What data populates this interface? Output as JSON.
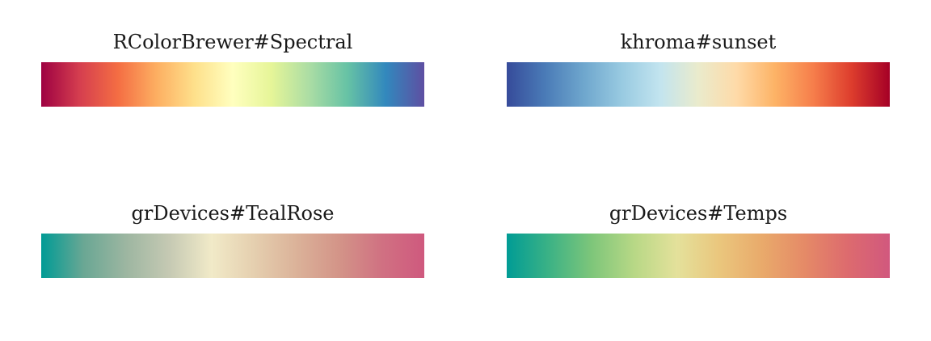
{
  "palettes": [
    {
      "title": "RColorBrewer#Spectral",
      "colors": [
        "#9e0142",
        "#d53e4f",
        "#f46d43",
        "#fdae61",
        "#fee08b",
        "#ffffbf",
        "#e6f598",
        "#abdda4",
        "#66c2a5",
        "#3288bd",
        "#5e4fa2"
      ]
    },
    {
      "title": "khroma#sunset",
      "colors": [
        "#364b9a",
        "#4a7bb7",
        "#6ea6cd",
        "#98cae1",
        "#c2e4ef",
        "#eaebcc",
        "#fedaa8",
        "#fdb366",
        "#f67e4b",
        "#dd3d2d",
        "#a50026"
      ]
    },
    {
      "title": "grDevices#TealRose",
      "colors": [
        "#009b95",
        "#6aa794",
        "#9db6a1",
        "#c5c9b3",
        "#f1eac8",
        "#e5cfaf",
        "#dbb299",
        "#d39488",
        "#d07182",
        "#cf597e"
      ]
    },
    {
      "title": "grDevices#Temps",
      "colors": [
        "#009c95",
        "#3cb285",
        "#7ec67a",
        "#b8d886",
        "#e4e19b",
        "#eac67d",
        "#e9aa6b",
        "#e58a67",
        "#dd6b6e",
        "#d1587e"
      ]
    }
  ]
}
